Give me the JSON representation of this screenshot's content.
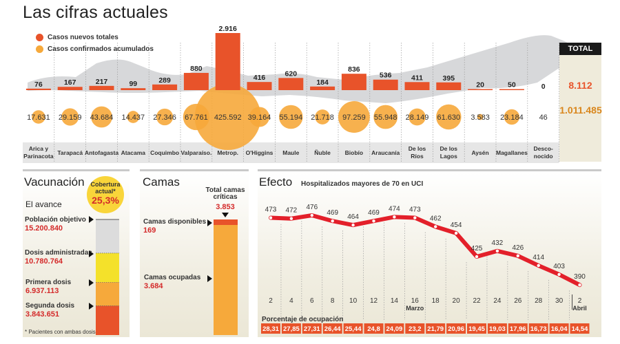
{
  "header": {
    "title": "Las cifras actuales"
  },
  "legend": [
    {
      "label": "Casos nuevos totales",
      "color": "#e8532a"
    },
    {
      "label": "Casos confirmados acumulados",
      "color": "#f6a93b"
    }
  ],
  "total": {
    "label": "TOTAL",
    "new_cases": "8.112",
    "accumulated": "1.011.485"
  },
  "vacunacion": {
    "title": "Vacunación",
    "subtitle": "El avance",
    "cobertura_label": "Cobertura actual*",
    "cobertura_value": "25,3%",
    "items": [
      {
        "label": "Población objetivo",
        "value": "15.200.840"
      },
      {
        "label": "Dosis administradas",
        "value": "10.780.764"
      },
      {
        "label": "Primera dosis",
        "value": "6.937.113"
      },
      {
        "label": "Segunda dosis",
        "value": "3.843.651"
      }
    ],
    "footnote": "* Pacientes con ambas dosis",
    "colors": {
      "objetivo": "#dcdcdc",
      "administradas": "#f4e12a",
      "primera": "#f6a93b",
      "segunda": "#e8532a"
    }
  },
  "camas": {
    "title": "Camas",
    "total_label": "Total camas críticas",
    "total_value": "3.853",
    "disponibles_label": "Camas disponibles",
    "disponibles_value": "169",
    "ocupadas_label": "Camas ocupadas",
    "ocupadas_value": "3.684",
    "colors": {
      "disponibles": "#e8532a",
      "ocupadas": "#f6a93b"
    }
  },
  "efecto": {
    "title": "Efecto",
    "subtitle": "Hospitalizados mayores de 70 en UCI",
    "occupancy_label": "Porcentaje de ocupación"
  },
  "chart_data": [
    {
      "type": "bar",
      "title": "Las cifras actuales",
      "categories": [
        "Arica y Parinacota",
        "Tarapacá",
        "Antofagasta",
        "Atacama",
        "Coquimbo",
        "Valparaíso.",
        "Metrop.",
        "O'Higgins",
        "Maule",
        "Ñuble",
        "Biobío",
        "Araucanía",
        "De los Ríos",
        "De los Lagos",
        "Aysén",
        "Magallanes",
        "Desco-nocido"
      ],
      "series": [
        {
          "name": "Casos nuevos totales",
          "color": "#e8532a",
          "values": [
            76,
            167,
            217,
            99,
            289,
            880,
            2916,
            416,
            620,
            184,
            836,
            536,
            411,
            395,
            20,
            50,
            0
          ],
          "labels": [
            "76",
            "167",
            "217",
            "99",
            "289",
            "880",
            "2.916",
            "416",
            "620",
            "184",
            "836",
            "536",
            "411",
            "395",
            "20",
            "50",
            "0"
          ]
        },
        {
          "name": "Casos confirmados acumulados",
          "color": "#f6a93b",
          "values": [
            17631,
            29159,
            43684,
            14437,
            27346,
            67761,
            425592,
            39164,
            55194,
            21718,
            97259,
            55948,
            28149,
            61630,
            3583,
            23184,
            46
          ],
          "labels": [
            "17.631",
            "29.159",
            "43.684",
            "14.437",
            "27.346",
            "67.761",
            "425.592",
            "39.164",
            "55.194",
            "21.718",
            "97.259",
            "55.948",
            "28.149",
            "61.630",
            "3.583",
            "23.184",
            "46"
          ]
        }
      ]
    },
    {
      "type": "bar",
      "title": "Vacunación - El avance",
      "categories": [
        "Población objetivo",
        "Dosis administradas",
        "Primera dosis",
        "Segunda dosis"
      ],
      "values": [
        15200840,
        10780764,
        6937113,
        3843651
      ]
    },
    {
      "type": "bar",
      "title": "Camas",
      "categories": [
        "Camas disponibles",
        "Camas ocupadas"
      ],
      "values": [
        169,
        3684
      ],
      "total": 3853
    },
    {
      "type": "line",
      "title": "Hospitalizados mayores de 70 en UCI",
      "x": [
        "2",
        "4",
        "6",
        "8",
        "10",
        "12",
        "14",
        "16",
        "18",
        "20",
        "22",
        "24",
        "26",
        "28",
        "30",
        "2"
      ],
      "x_sublabels": {
        "7": "Marzo",
        "15": "Abril"
      },
      "series": [
        {
          "name": "Hospitalizados mayores de 70 en UCI",
          "color": "#e3202a",
          "values": [
            473,
            472,
            476,
            469,
            464,
            469,
            474,
            473,
            462,
            454,
            425,
            432,
            426,
            414,
            403,
            390
          ]
        },
        {
          "name": "Porcentaje de ocupación",
          "color": "#e8532a",
          "values": [
            28.31,
            27.85,
            27.31,
            26.44,
            25.44,
            24.8,
            24.09,
            23.2,
            21.79,
            20.96,
            19.45,
            19.03,
            17.96,
            16.73,
            16.04,
            14.54
          ],
          "labels": [
            "28,31",
            "27,85",
            "27,31",
            "26,44",
            "25,44",
            "24,8",
            "24,09",
            "23,2",
            "21,79",
            "20,96",
            "19,45",
            "19,03",
            "17,96",
            "16,73",
            "16,04",
            "14,54"
          ]
        }
      ],
      "ylim": [
        380,
        480
      ],
      "grid": true
    }
  ]
}
